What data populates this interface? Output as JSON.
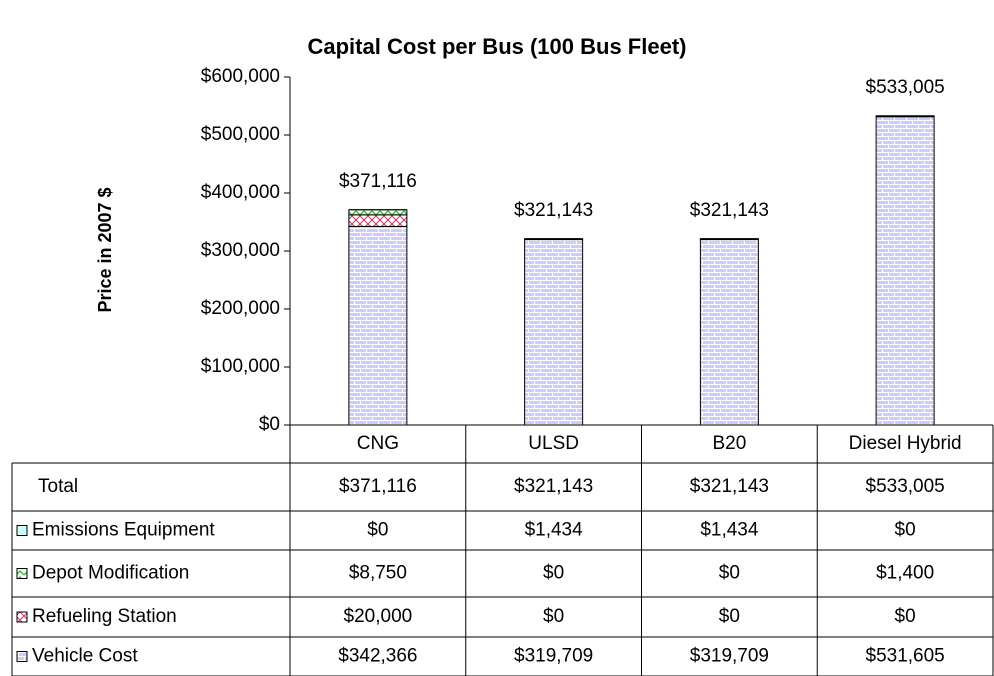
{
  "chart_data": {
    "type": "stacked_bar",
    "title": "Capital Cost per Bus (100 Bus Fleet)",
    "y_label": "Price in 2007 $",
    "categories": [
      "CNG",
      "ULSD",
      "B20",
      "Diesel Hybrid"
    ],
    "series": [
      {
        "name": "Vehicle Cost",
        "color": "#ccccff",
        "values": [
          342366,
          319709,
          319709,
          531605
        ],
        "value_labels": [
          "$342,366",
          "$319,709",
          "$319,709",
          "$531,605"
        ]
      },
      {
        "name": "Refueling Station",
        "color": "#cc3366",
        "values": [
          20000,
          0,
          0,
          0
        ],
        "value_labels": [
          "$20,000",
          "$0",
          "$0",
          "$0"
        ]
      },
      {
        "name": "Depot Modification",
        "color": "#33cc33",
        "values": [
          8750,
          0,
          0,
          1400
        ],
        "value_labels": [
          "$8,750",
          "$0",
          "$0",
          "$1,400"
        ]
      },
      {
        "name": "Emissions Equipment",
        "color": "#ccffff",
        "values": [
          0,
          1434,
          1434,
          0
        ],
        "value_labels": [
          "$0",
          "$1,434",
          "$1,434",
          "$0"
        ]
      }
    ],
    "totals": {
      "name": "Total",
      "values": [
        371116,
        321143,
        321143,
        533005
      ],
      "value_labels": [
        "$371,116",
        "$321,143",
        "$321,143",
        "$533,005"
      ]
    },
    "ylim": [
      0,
      600000
    ],
    "yticks": [
      {
        "value": 0,
        "label": "$0"
      },
      {
        "value": 100000,
        "label": "$100,000"
      },
      {
        "value": 200000,
        "label": "$200,000"
      },
      {
        "value": 300000,
        "label": "$300,000"
      },
      {
        "value": 400000,
        "label": "$400,000"
      },
      {
        "value": 500000,
        "label": "$500,000"
      },
      {
        "value": 600000,
        "label": "$600,000"
      }
    ],
    "grid": false
  }
}
